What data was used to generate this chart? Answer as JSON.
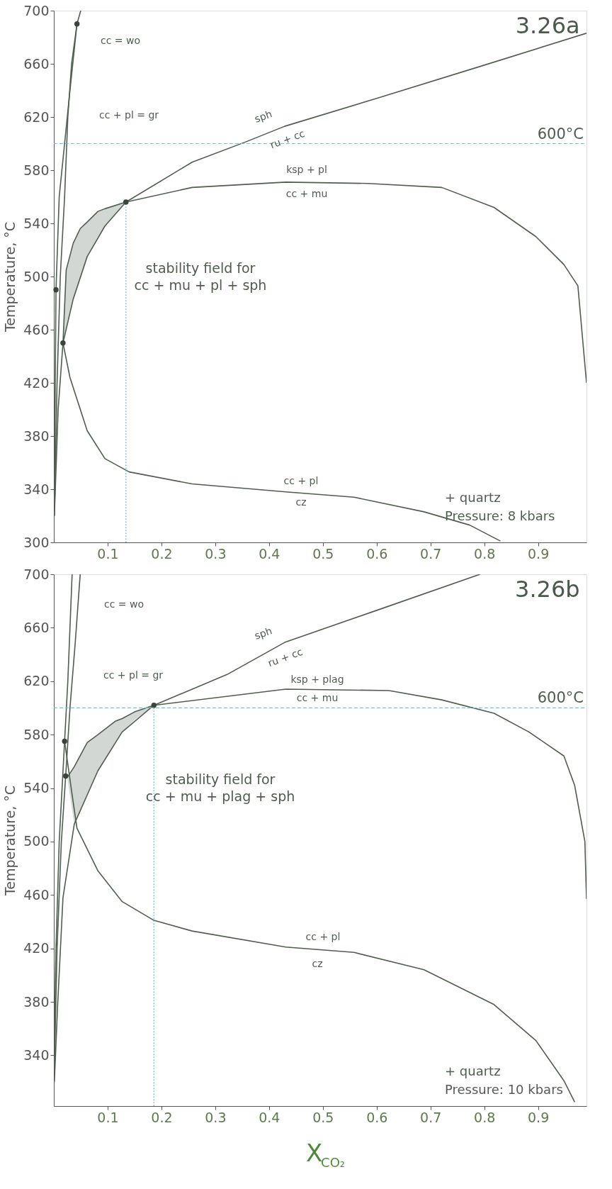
{
  "chart_data": [
    {
      "type": "line",
      "title": "3.26a",
      "ylabel": "Temperature, °C",
      "xlim": [
        0,
        0.99
      ],
      "xticks": [
        0.1,
        0.2,
        0.3,
        0.4,
        0.5,
        0.6,
        0.7,
        0.8,
        0.9
      ],
      "ylim": [
        300,
        700
      ],
      "yticks": [
        300,
        340,
        380,
        420,
        460,
        500,
        540,
        580,
        620,
        660,
        700
      ],
      "marker": "none",
      "line_style": "solid",
      "series": [
        {
          "color": "#4f5f4f",
          "x": [
            0.001,
            0.006,
            0.012,
            0.02,
            0.026,
            0.033,
            0.043,
            0.05
          ],
          "values": [
            320,
            420,
            500,
            560,
            620,
            660,
            690,
            700
          ]
        },
        {
          "color": "#4f5f4f",
          "x": [
            0.001,
            0.003,
            0.004,
            0.01,
            0.02,
            0.03,
            0.043
          ],
          "values": [
            330,
            440,
            490,
            560,
            600,
            640,
            690
          ]
        },
        {
          "color": "#4f5f4f",
          "x": [
            0.001,
            0.008,
            0.017,
            0.036,
            0.062,
            0.095,
            0.134,
            0.257,
            0.355,
            0.429,
            0.6,
            0.8,
            0.99
          ],
          "values": [
            320,
            400,
            450,
            483,
            515,
            538,
            556,
            586,
            601,
            613,
            634,
            659,
            683
          ]
        },
        {
          "color": "#4f5f4f",
          "x": [
            0.134,
            0.257,
            0.431,
            0.584,
            0.721,
            0.818,
            0.896,
            0.948,
            0.974,
            0.99
          ],
          "values": [
            556,
            567,
            571,
            570,
            567,
            552,
            530,
            509,
            493,
            420
          ]
        },
        {
          "color": "#4f5f4f",
          "x": [
            0.017,
            0.03,
            0.062,
            0.095,
            0.14,
            0.257,
            0.431,
            0.558,
            0.688,
            0.773,
            0.83
          ],
          "values": [
            450,
            424,
            384,
            363,
            353,
            344,
            338,
            334,
            323,
            313,
            301
          ]
        },
        {
          "color": "#4f5f4f",
          "x": [
            0.017,
            0.023,
            0.036,
            0.049,
            0.062,
            0.082,
            0.095,
            0.134
          ],
          "values": [
            450,
            505,
            525,
            536,
            541,
            549,
            551,
            556
          ],
          "lower": [
            450,
            460,
            483,
            500,
            515,
            530,
            538,
            556
          ],
          "upper": [
            450,
            505,
            525,
            536,
            541,
            549,
            551,
            556
          ]
        },
        {
          "color": "#6cc5d8",
          "line_style": "dotted",
          "x": [
            0.134,
            0.134
          ],
          "values": [
            300,
            556
          ]
        },
        {
          "type": "scatter",
          "color": "#3a443a",
          "marker": "circle",
          "x": [
            0.043,
            0.134,
            0.004,
            0.017
          ],
          "values": [
            690,
            556,
            490,
            450
          ]
        }
      ],
      "ref_lines": [
        {
          "axis": "y",
          "value": 600,
          "label": "600°C",
          "color": "#6cc5d8",
          "line_style": "dashed"
        }
      ],
      "annotations": [
        "cc = wo",
        "cc + pl = gr",
        "sph",
        "ru + cc",
        "ksp + pl",
        "cc + mu",
        "stability field for\ncc + mu + pl + sph",
        "cc + pl",
        "cz",
        "+ quartz",
        "Pressure: 8 kbars"
      ]
    },
    {
      "type": "line",
      "title": "3.26b",
      "xlabel": "X$_{CO₂}$",
      "ylabel": "Temperature, °C",
      "xlim": [
        0,
        0.99
      ],
      "xticks": [
        0.1,
        0.2,
        0.3,
        0.4,
        0.5,
        0.6,
        0.7,
        0.8,
        0.9
      ],
      "ylim": [
        302,
        700
      ],
      "yticks": [
        340,
        380,
        420,
        460,
        500,
        540,
        580,
        620,
        660,
        700
      ],
      "marker": "none",
      "line_style": "solid",
      "series": [
        {
          "color": "#4f5f4f",
          "x": [
            0.001,
            0.006,
            0.014,
            0.022,
            0.03,
            0.04,
            0.049
          ],
          "values": [
            330,
            420,
            500,
            549,
            600,
            650,
            700
          ]
        },
        {
          "color": "#4f5f4f",
          "x": [
            0.0,
            0.004,
            0.01,
            0.02,
            0.026,
            0.03,
            0.034
          ],
          "values": [
            330,
            420,
            500,
            575,
            620,
            660,
            700
          ]
        },
        {
          "color": "#4f5f4f",
          "x": [
            0.001,
            0.007,
            0.017,
            0.038,
            0.082,
            0.127,
            0.186,
            0.322,
            0.429,
            0.6,
            0.792
          ],
          "values": [
            320,
            377,
            458,
            513,
            553,
            582,
            602,
            625,
            649,
            673,
            700
          ]
        },
        {
          "color": "#4f5f4f",
          "x": [
            0.186,
            0.431,
            0.623,
            0.721,
            0.818,
            0.883,
            0.948,
            0.968,
            0.987,
            0.99
          ],
          "values": [
            602,
            614,
            613,
            606,
            596,
            582,
            564,
            542,
            500,
            457
          ]
        },
        {
          "color": "#4f5f4f",
          "x": [
            0.02,
            0.034,
            0.043,
            0.082,
            0.127,
            0.186,
            0.257,
            0.431,
            0.558,
            0.688,
            0.818,
            0.896,
            0.948,
            0.968
          ],
          "values": [
            575,
            535,
            510,
            478,
            455,
            441,
            433,
            421,
            417,
            404,
            378,
            351,
            321,
            305
          ]
        },
        {
          "color": "#4f5f4f",
          "x": [
            0.025,
            0.038,
            0.062,
            0.082,
            0.114,
            0.127,
            0.15,
            0.186
          ],
          "values": [
            548,
            556,
            574,
            580,
            590,
            592,
            597,
            602
          ],
          "lower": [
            548,
            513,
            535,
            553,
            574,
            582,
            591,
            602
          ],
          "upper": [
            548,
            556,
            574,
            580,
            590,
            592,
            597,
            602
          ]
        },
        {
          "color": "#6cc5d8",
          "line_style": "dotted",
          "x": [
            0.186,
            0.186
          ],
          "values": [
            302,
            602
          ]
        },
        {
          "type": "scatter",
          "color": "#3a443a",
          "marker": "circle",
          "x": [
            0.186,
            0.02,
            0.022
          ],
          "values": [
            602,
            575,
            549
          ]
        }
      ],
      "ref_lines": [
        {
          "axis": "y",
          "value": 600,
          "label": "600°C",
          "color": "#6cc5d8",
          "line_style": "dashed"
        }
      ],
      "annotations": [
        "cc = wo",
        "cc + pl = gr",
        "sph",
        "ru + cc",
        "ksp + plag",
        "cc + mu",
        "stability field for\ncc + mu + plag + sph",
        "cc + pl",
        "cz",
        "+ quartz",
        "Pressure: 10 kbars"
      ]
    }
  ]
}
